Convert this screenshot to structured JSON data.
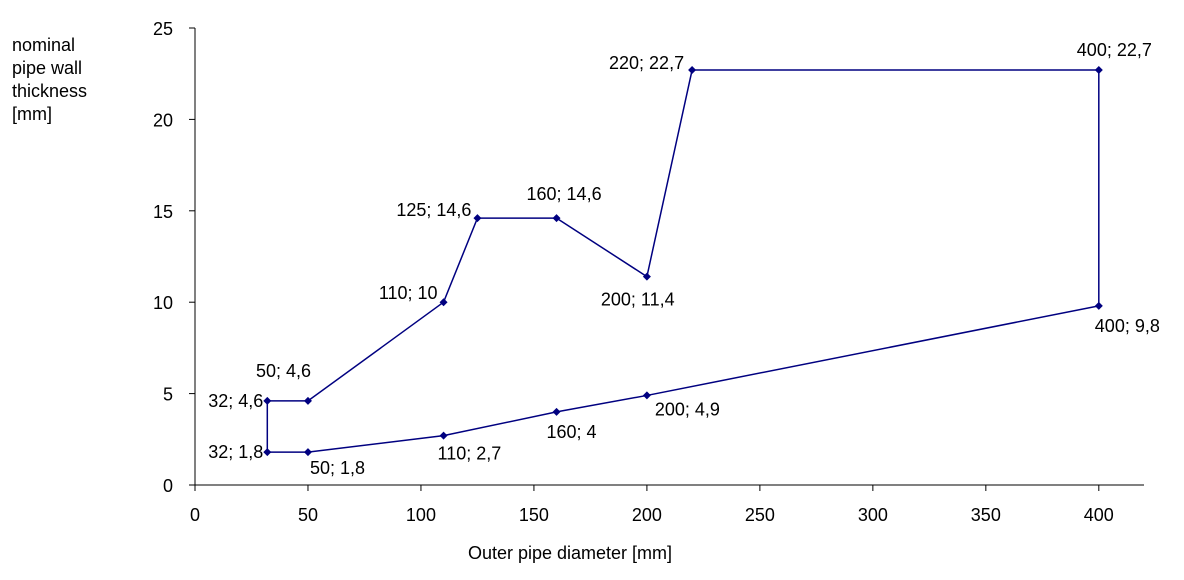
{
  "chart_data": {
    "type": "line",
    "xlabel": "Outer pipe diameter [mm]",
    "ylabel_lines": [
      "nominal",
      "pipe wall",
      "thickness",
      "[mm]"
    ],
    "xlim": [
      0,
      420
    ],
    "ylim": [
      0,
      25
    ],
    "x_ticks": [
      0,
      50,
      100,
      150,
      200,
      250,
      300,
      350,
      400
    ],
    "y_ticks": [
      0,
      5,
      10,
      15,
      20,
      25
    ],
    "grid": false,
    "legend": "none",
    "series": [
      {
        "color": "#000080",
        "points": [
          {
            "x": 32,
            "y": 1.8,
            "label": "32; 1,8"
          },
          {
            "x": 50,
            "y": 1.8,
            "label": "50; 1,8"
          },
          {
            "x": 110,
            "y": 2.7,
            "label": "110; 2,7"
          },
          {
            "x": 160,
            "y": 4,
            "label": "160; 4"
          },
          {
            "x": 200,
            "y": 4.9,
            "label": "200; 4,9"
          },
          {
            "x": 400,
            "y": 9.8,
            "label": "400; 9,8"
          },
          {
            "x": 400,
            "y": 22.7,
            "label": "400; 22,7"
          },
          {
            "x": 220,
            "y": 22.7,
            "label": "220; 22,7"
          },
          {
            "x": 200,
            "y": 11.4,
            "label": "200; 11,4"
          },
          {
            "x": 160,
            "y": 14.6,
            "label": "160; 14,6"
          },
          {
            "x": 125,
            "y": 14.6,
            "label": "125; 14,6"
          },
          {
            "x": 110,
            "y": 10,
            "label": "110; 10"
          },
          {
            "x": 50,
            "y": 4.6,
            "label": "50; 4,6"
          },
          {
            "x": 32,
            "y": 4.6,
            "label": "32; 4,6"
          },
          {
            "x": 32,
            "y": 1.8,
            "label": ""
          }
        ]
      }
    ]
  }
}
